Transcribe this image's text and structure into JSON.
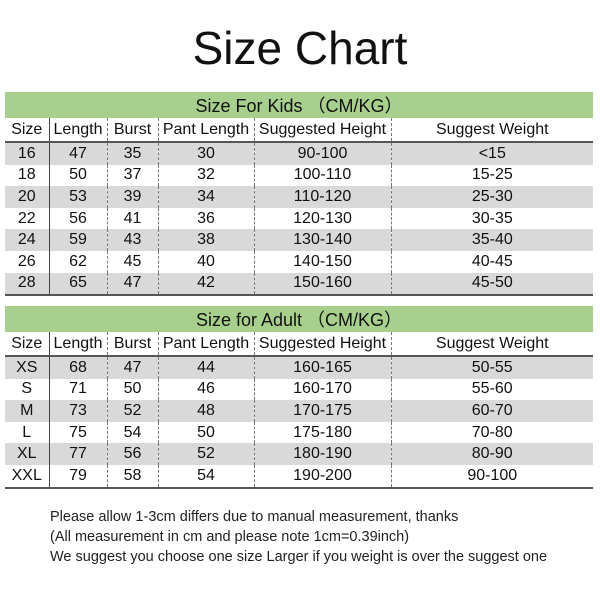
{
  "title": "Size Chart",
  "columns": [
    "Size",
    "Length",
    "Burst",
    "Pant Length",
    "Suggested Height",
    "Suggest Weight"
  ],
  "colors": {
    "header_green": "#a8d08d",
    "row_shade": "#d9d9d9"
  },
  "kids": {
    "caption": "Size For Kids （CM/KG）",
    "rows": [
      [
        "16",
        "47",
        "35",
        "30",
        "90-100",
        "<15"
      ],
      [
        "18",
        "50",
        "37",
        "32",
        "100-110",
        "15-25"
      ],
      [
        "20",
        "53",
        "39",
        "34",
        "110-120",
        "25-30"
      ],
      [
        "22",
        "56",
        "41",
        "36",
        "120-130",
        "30-35"
      ],
      [
        "24",
        "59",
        "43",
        "38",
        "130-140",
        "35-40"
      ],
      [
        "26",
        "62",
        "45",
        "40",
        "140-150",
        "40-45"
      ],
      [
        "28",
        "65",
        "47",
        "42",
        "150-160",
        "45-50"
      ]
    ]
  },
  "adult": {
    "caption": "Size for Adult （CM/KG）",
    "rows": [
      [
        "XS",
        "68",
        "47",
        "44",
        "160-165",
        "50-55"
      ],
      [
        "S",
        "71",
        "50",
        "46",
        "160-170",
        "55-60"
      ],
      [
        "M",
        "73",
        "52",
        "48",
        "170-175",
        "60-70"
      ],
      [
        "L",
        "75",
        "54",
        "50",
        "175-180",
        "70-80"
      ],
      [
        "XL",
        "77",
        "56",
        "52",
        "180-190",
        "80-90"
      ],
      [
        "XXL",
        "79",
        "58",
        "54",
        "190-200",
        "90-100"
      ]
    ]
  },
  "notes": [
    "Please allow 1-3cm differs due to manual measurement, thanks",
    "(All measurement in cm and please note 1cm=0.39inch)",
    "We suggest you choose one size Larger if you weight is over the suggest one"
  ]
}
